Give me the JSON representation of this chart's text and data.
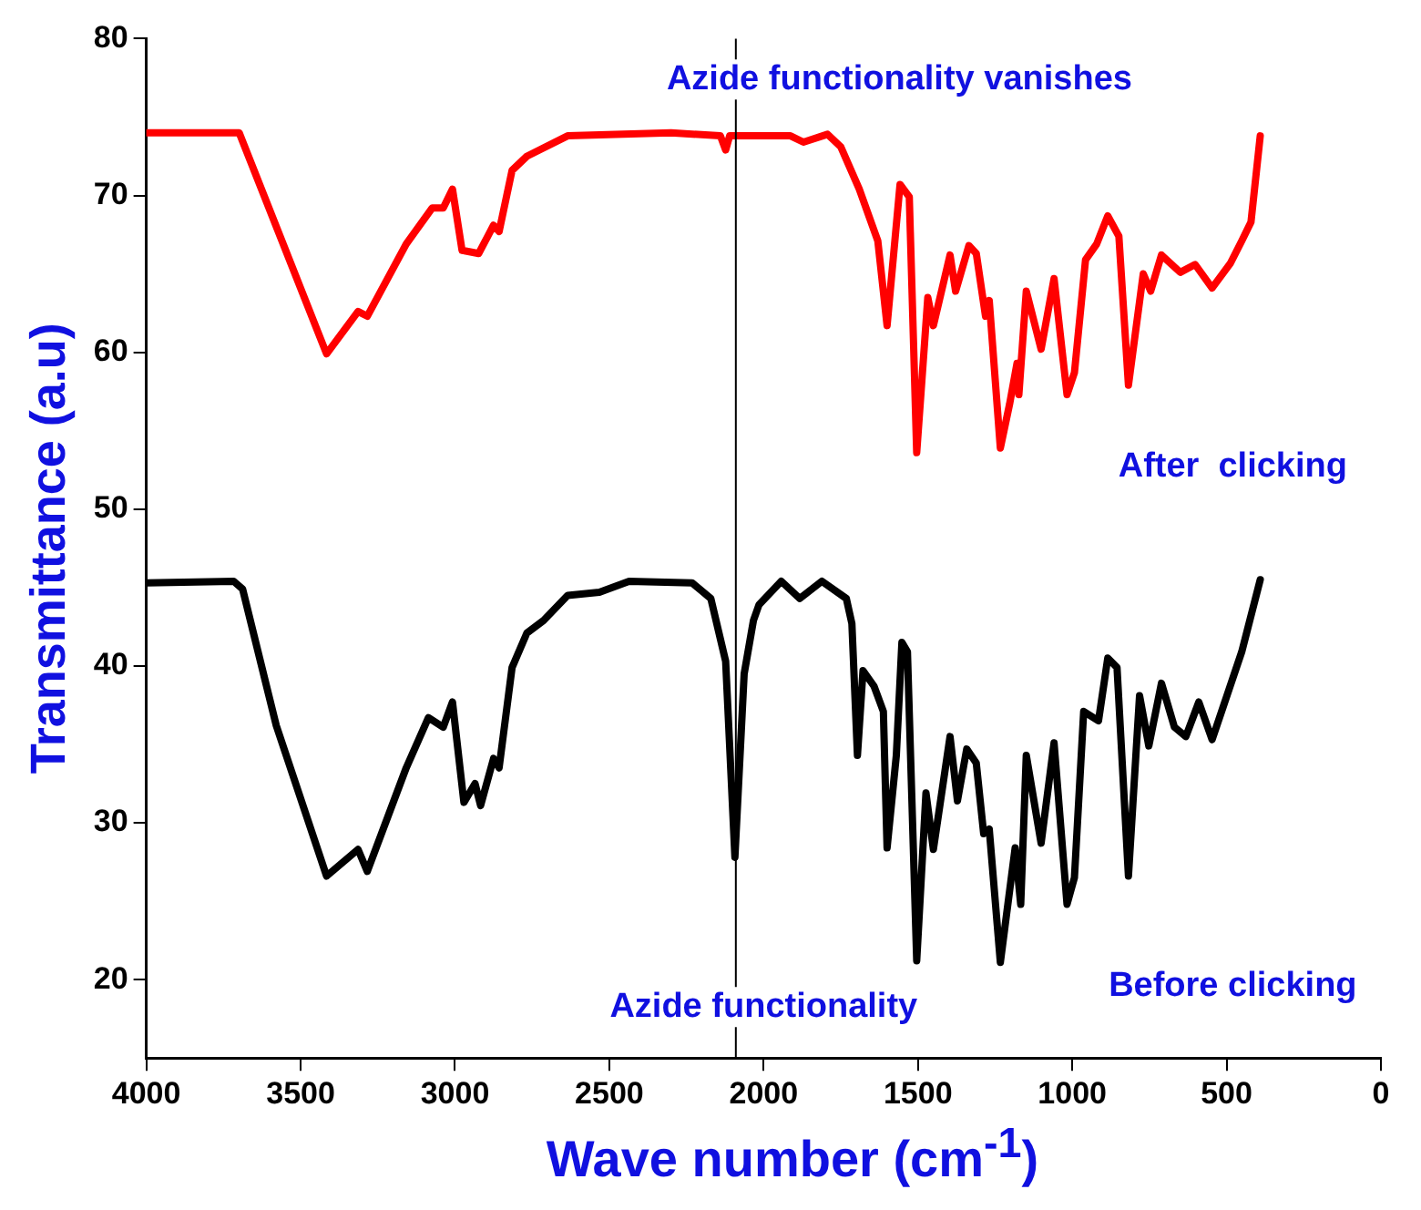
{
  "chart_data": {
    "type": "line",
    "xlabel": "Wave number (cm$^{-1}$)",
    "ylabel": "Transmittance (a.u)",
    "xlim": [
      4000,
      0
    ],
    "xticks": [
      4000,
      3500,
      3000,
      2500,
      2000,
      1500,
      1000,
      500,
      0
    ],
    "ylim": [
      15,
      80
    ],
    "yticks": [
      20,
      30,
      40,
      50,
      60,
      70,
      80
    ],
    "grid": false,
    "legend": false,
    "marker": "none",
    "line_style": "solid",
    "ref_lines": [
      {
        "axis": "x",
        "value": 2090,
        "color": "#000000"
      }
    ],
    "annotations": [
      "Azide functionality vanishes",
      "After  clicking",
      "Azide functionality",
      "Before clicking"
    ],
    "series": [
      {
        "color": "#ff0000",
        "x": [
          4000,
          3699,
          3416,
          3314,
          3284,
          3158,
          3074,
          3038,
          3008,
          2977,
          2923,
          2875,
          2857,
          2815,
          2767,
          2635,
          2300,
          2140,
          2123,
          2110,
          2093,
          1913,
          1871,
          1793,
          1750,
          1690,
          1630,
          1600,
          1558,
          1528,
          1504,
          1468,
          1450,
          1396,
          1378,
          1335,
          1311,
          1281,
          1269,
          1233,
          1203,
          1179,
          1173,
          1149,
          1101,
          1059,
          1017,
          993,
          957,
          921,
          885,
          849,
          818,
          770,
          746,
          711,
          650,
          602,
          547,
          487,
          451,
          421,
          391
        ],
        "values": [
          74,
          74,
          59.9,
          62.6,
          62.3,
          66.9,
          69.2,
          69.2,
          70.4,
          66.5,
          66.3,
          68.1,
          67.7,
          71.6,
          72.5,
          73.8,
          74,
          73.8,
          72.9,
          73.8,
          73.8,
          73.8,
          73.4,
          73.9,
          73.1,
          70.4,
          67.1,
          61.7,
          70.7,
          69.9,
          53.6,
          63.5,
          61.7,
          66.2,
          63.9,
          66.8,
          66.3,
          62.3,
          63.3,
          53.9,
          56.7,
          59.3,
          57.3,
          63.9,
          60.2,
          64.7,
          57.3,
          58.7,
          65.9,
          66.9,
          68.7,
          67.4,
          57.9,
          65,
          63.9,
          66.2,
          65.1,
          65.6,
          64.1,
          65.7,
          67.1,
          68.3,
          73.8
        ]
      },
      {
        "color": "#000000",
        "x": [
          4000,
          3717,
          3688,
          3579,
          3416,
          3314,
          3284,
          3158,
          3086,
          3038,
          3008,
          2971,
          2935,
          2917,
          2875,
          2857,
          2815,
          2767,
          2713,
          2635,
          2532,
          2436,
          2232,
          2171,
          2123,
          2093,
          2063,
          2033,
          2015,
          1943,
          1883,
          1811,
          1732,
          1714,
          1696,
          1678,
          1642,
          1612,
          1600,
          1570,
          1552,
          1534,
          1504,
          1474,
          1450,
          1396,
          1372,
          1342,
          1311,
          1287,
          1269,
          1233,
          1185,
          1167,
          1149,
          1101,
          1059,
          1017,
          993,
          963,
          915,
          885,
          855,
          818,
          782,
          752,
          711,
          669,
          632,
          590,
          547,
          511,
          451,
          391
        ],
        "values": [
          45.3,
          45.4,
          44.9,
          36.2,
          26.6,
          28.3,
          26.9,
          33.5,
          36.7,
          36.1,
          37.7,
          31.3,
          32.5,
          31.1,
          34.1,
          33.5,
          39.9,
          42.1,
          42.9,
          44.5,
          44.7,
          45.4,
          45.3,
          44.3,
          40.3,
          27.8,
          39.5,
          42.9,
          43.9,
          45.4,
          44.3,
          45.4,
          44.3,
          42.7,
          34.3,
          39.7,
          38.7,
          37.1,
          28.4,
          34.3,
          41.5,
          40.9,
          21.2,
          31.9,
          28.3,
          35.5,
          31.4,
          34.7,
          33.8,
          29.3,
          29.6,
          21.1,
          28.4,
          24.8,
          34.3,
          28.7,
          35.1,
          24.8,
          26.5,
          37.1,
          36.5,
          40.5,
          39.9,
          26.6,
          38.1,
          34.9,
          38.9,
          36.1,
          35.5,
          37.7,
          35.3,
          37.4,
          40.9,
          45.5
        ]
      }
    ]
  }
}
